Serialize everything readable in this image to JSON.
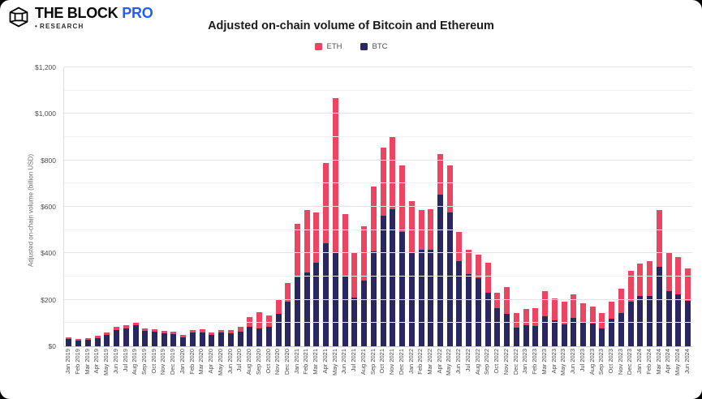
{
  "header": {
    "brand_main": "THE BLOCK",
    "brand_pro": "PRO",
    "brand_sub": "RESEARCH",
    "brand_bullet": "•",
    "title": "Adjusted on-chain volume of Bitcoin and Ethereum"
  },
  "colors": {
    "eth": "#EC4561",
    "btc": "#2A265F",
    "pro_blue": "#1E5EFF"
  },
  "legend": [
    {
      "label": "ETH",
      "color": "#EC4561"
    },
    {
      "label": "BTC",
      "color": "#2A265F"
    }
  ],
  "y_axis": {
    "title": "Adjusted on-chain volume (billion USD)",
    "max": 1200,
    "minor_step": 100,
    "major_step": 200,
    "tick_labels": [
      "$0",
      "$200",
      "$400",
      "$600",
      "$800",
      "$1,000",
      "$1,200"
    ]
  },
  "chart_data": {
    "type": "bar",
    "stacked": true,
    "title": "Adjusted on-chain volume of Bitcoin and Ethereum",
    "xlabel": "",
    "ylabel": "Adjusted on-chain volume (billion USD)",
    "ylim": [
      0,
      1200
    ],
    "grid": true,
    "legend_position": "top-center",
    "categories": [
      "Jan 2019",
      "Feb 2019",
      "Mar 2019",
      "Apr 2019",
      "May 2019",
      "Jun 2019",
      "Jul 2019",
      "Aug 2019",
      "Sep 2019",
      "Oct 2019",
      "Nov 2019",
      "Dec 2019",
      "Jan 2020",
      "Feb 2020",
      "Mar 2020",
      "Apr 2020",
      "May 2020",
      "Jun 2020",
      "Jul 2020",
      "Aug 2020",
      "Sep 2020",
      "Oct 2020",
      "Nov 2020",
      "Dec 2020",
      "Jan 2021",
      "Feb 2021",
      "Mar 2021",
      "Apr 2021",
      "May 2021",
      "Jun 2021",
      "Jul 2021",
      "Aug 2021",
      "Sep 2021",
      "Oct 2021",
      "Nov 2021",
      "Dec 2021",
      "Jan 2022",
      "Feb 2022",
      "Mar 2022",
      "Apr 2022",
      "May 2022",
      "Jun 2022",
      "Jul 2022",
      "Aug 2022",
      "Sep 2022",
      "Oct 2022",
      "Nov 2022",
      "Dec 2022",
      "Jan 2023",
      "Feb 2023",
      "Mar 2023",
      "Apr 2023",
      "May 2023",
      "Jun 2023",
      "Jul 2023",
      "Aug 2023",
      "Sep 2023",
      "Oct 2023",
      "Nov 2023",
      "Dec 2023",
      "Jan 2024",
      "Feb 2024",
      "Mar 2024",
      "Apr 2024",
      "May 2024",
      "Jun 2024"
    ],
    "series": [
      {
        "name": "BTC",
        "color": "#2A265F",
        "values": [
          30,
          24,
          28,
          36,
          49,
          71,
          76,
          92,
          66,
          62,
          56,
          52,
          40,
          58,
          60,
          49,
          59,
          57,
          64,
          83,
          76,
          83,
          141,
          192,
          295,
          316,
          360,
          442,
          403,
          299,
          208,
          281,
          409,
          560,
          590,
          491,
          403,
          414,
          414,
          651,
          577,
          365,
          310,
          293,
          229,
          164,
          138,
          80,
          92,
          88,
          129,
          110,
          95,
          123,
          106,
          98,
          77,
          117,
          143,
          193,
          216,
          216,
          342,
          238,
          224,
          195
        ]
      },
      {
        "name": "ETH",
        "color": "#EC4561",
        "values": [
          8,
          7,
          8,
          9,
          10,
          14,
          14,
          11,
          12,
          10,
          10,
          10,
          8,
          12,
          13,
          11,
          12,
          12,
          21,
          44,
          69,
          48,
          58,
          79,
          233,
          270,
          216,
          348,
          666,
          270,
          193,
          235,
          279,
          296,
          311,
          287,
          221,
          172,
          177,
          176,
          200,
          127,
          104,
          102,
          130,
          66,
          118,
          63,
          70,
          76,
          109,
          95,
          97,
          99,
          78,
          74,
          66,
          76,
          105,
          130,
          140,
          151,
          243,
          167,
          161,
          140
        ]
      }
    ]
  }
}
